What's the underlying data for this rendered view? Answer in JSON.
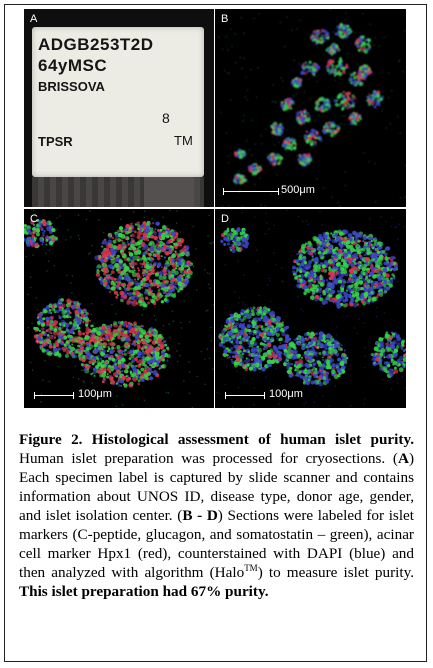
{
  "figure": {
    "panels": [
      {
        "letter": "A"
      },
      {
        "letter": "B",
        "scale": "500μm"
      },
      {
        "letter": "C",
        "scale": "100μm"
      },
      {
        "letter": "D",
        "scale": "100μm"
      }
    ],
    "slide_label": {
      "line1": "ADGB253T2D",
      "line2": "64yMSC",
      "line3": "BRISSOVA",
      "number": "8",
      "tpsr": "TPSR",
      "tm": "TM"
    },
    "stain_colors": {
      "islet_markers": "#35d24a",
      "acinar_marker": "#d8344f",
      "dapi": "#3c45c8",
      "background": "#000000"
    }
  },
  "caption": {
    "title_prefix": "Figure 2. Histological assessment of human islet purity.",
    "t1": " Human islet preparation was processed for cryosections. (",
    "a": "A",
    "t2": ") Each specimen label is captured by slide scanner and contains information about UNOS ID, disease type, donor age, gender, and islet isolation center. (",
    "bd": "B - D",
    "t3": ") Sections were labeled for islet markers (C-peptide, glucagon, and somatostatin – green), acinar cell marker Hpx1 (red), counterstained with DAPI (blue) and then analyzed with algorithm (Halo",
    "tm_sup": "TM",
    "t4": ") to measure islet purity. ",
    "purity": "This islet preparation had 67% purity."
  }
}
